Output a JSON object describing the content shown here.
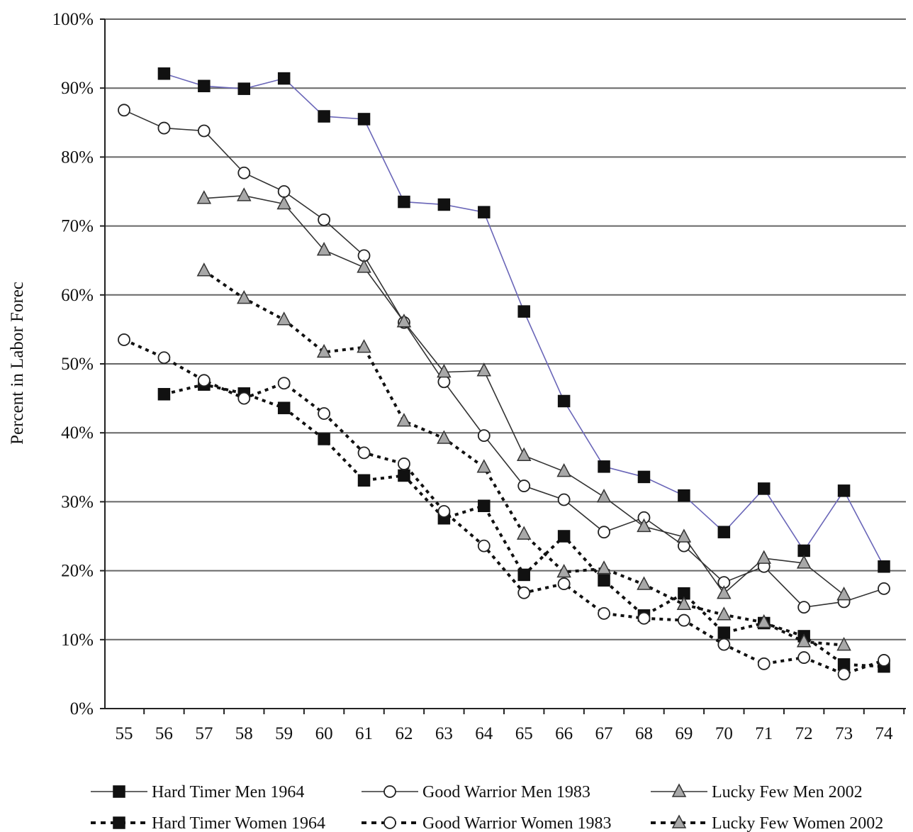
{
  "chart_data": {
    "type": "line",
    "title": "",
    "xlabel": "",
    "ylabel": "Percent in Labor Forec",
    "x": [
      55,
      56,
      57,
      58,
      59,
      60,
      61,
      62,
      63,
      64,
      65,
      66,
      67,
      68,
      69,
      70,
      71,
      72,
      73,
      74
    ],
    "ylim": [
      0,
      100
    ],
    "y_ticks": [
      "0%",
      "10%",
      "20%",
      "30%",
      "40%",
      "50%",
      "60%",
      "70%",
      "80%",
      "90%",
      "100%"
    ],
    "x_ticks": [
      "55",
      "56",
      "57",
      "58",
      "59",
      "60",
      "61",
      "62",
      "63",
      "64",
      "65",
      "66",
      "67",
      "68",
      "69",
      "70",
      "71",
      "72",
      "73",
      "74"
    ],
    "grid": "horizontal",
    "legend_position": "bottom",
    "series": [
      {
        "name": "Hard Timer Men 1964",
        "marker": "square",
        "fill": "#111111",
        "line": "solid",
        "color": "#6a66b8",
        "values": [
          null,
          92.1,
          90.3,
          89.9,
          91.4,
          85.9,
          85.5,
          73.5,
          73.1,
          72.0,
          57.6,
          44.6,
          35.1,
          33.6,
          30.9,
          25.6,
          31.9,
          22.9,
          31.6,
          20.6
        ]
      },
      {
        "name": "Good Warrior Men 1983",
        "marker": "circle",
        "fill": "#ffffff",
        "line": "solid",
        "color": "#333333",
        "values": [
          86.8,
          84.2,
          83.8,
          77.7,
          75.0,
          70.9,
          65.7,
          56.0,
          47.4,
          39.6,
          32.3,
          30.3,
          25.6,
          27.7,
          23.6,
          18.3,
          20.6,
          14.7,
          15.5,
          17.4
        ]
      },
      {
        "name": "Lucky Few Men 2002",
        "marker": "triangle",
        "fill": "#a8a8a8",
        "line": "solid",
        "color": "#333333",
        "values": [
          null,
          null,
          74.0,
          74.4,
          73.2,
          66.5,
          64.0,
          56.1,
          48.8,
          49.0,
          36.7,
          34.4,
          30.7,
          26.4,
          24.9,
          16.7,
          21.8,
          21.1,
          16.5,
          null
        ]
      },
      {
        "name": "Hard Timer Women 1964",
        "marker": "square",
        "fill": "#111111",
        "line": "dotted",
        "color": "#111111",
        "values": [
          null,
          45.6,
          47.0,
          45.7,
          43.6,
          39.1,
          33.1,
          33.8,
          27.6,
          29.4,
          19.4,
          25.0,
          18.6,
          13.5,
          16.7,
          11.0,
          12.4,
          10.5,
          6.4,
          6.1
        ]
      },
      {
        "name": "Good Warrior Women 1983",
        "marker": "circle",
        "fill": "#ffffff",
        "line": "dotted",
        "color": "#111111",
        "values": [
          53.5,
          50.9,
          47.6,
          45.0,
          47.2,
          42.8,
          37.1,
          35.5,
          28.6,
          23.6,
          16.8,
          18.1,
          13.8,
          13.1,
          12.8,
          9.3,
          6.5,
          7.4,
          5.0,
          7.0
        ]
      },
      {
        "name": "Lucky Few Women 2002",
        "marker": "triangle",
        "fill": "#a8a8a8",
        "line": "dotted",
        "color": "#111111",
        "values": [
          null,
          null,
          63.5,
          59.5,
          56.4,
          51.7,
          52.4,
          41.7,
          39.2,
          35.0,
          25.3,
          19.8,
          20.3,
          18.0,
          15.1,
          13.6,
          12.5,
          9.7,
          9.2,
          null
        ]
      }
    ]
  }
}
